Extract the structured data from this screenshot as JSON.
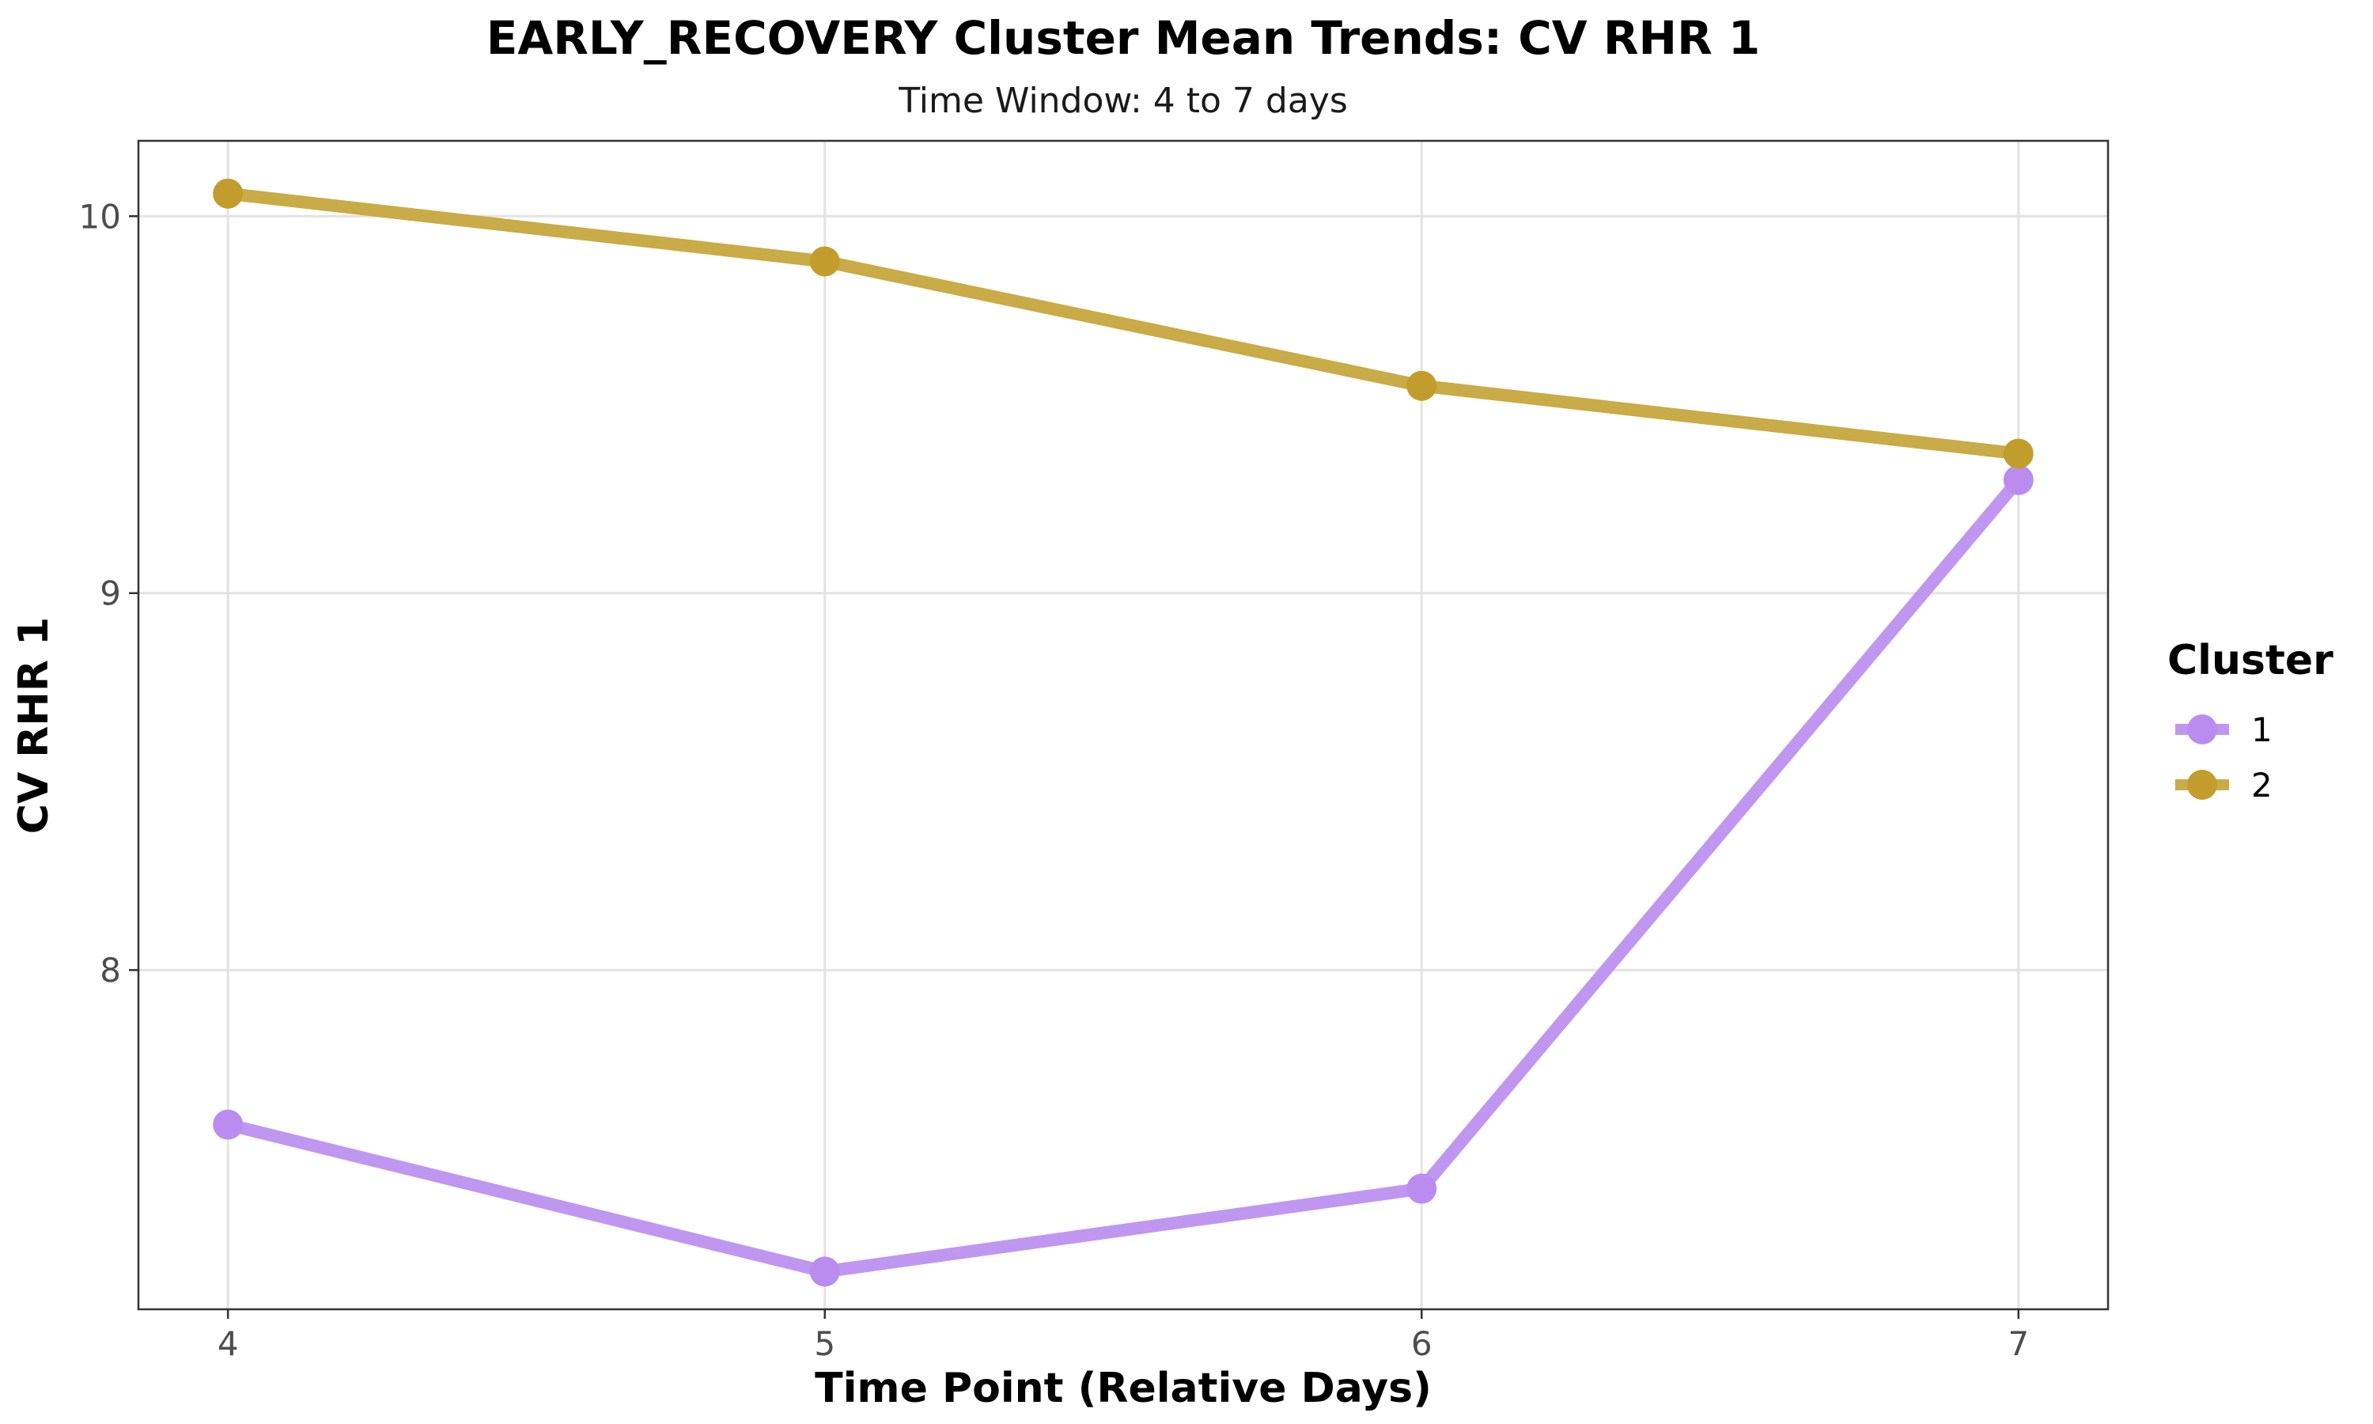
{
  "chart_data": {
    "type": "line",
    "title": "EARLY_RECOVERY Cluster Mean Trends: CV RHR 1",
    "subtitle": "Time Window: 4 to 7 days",
    "xlabel": "Time Point (Relative Days)",
    "ylabel": "CV RHR 1",
    "x": [
      4,
      5,
      6,
      7
    ],
    "x_ticks": [
      4,
      5,
      6,
      7
    ],
    "y_ticks": [
      8,
      9,
      10
    ],
    "xlim": [
      3.85,
      7.15
    ],
    "ylim": [
      7.1,
      10.2
    ],
    "grid": true,
    "legend": {
      "title": "Cluster",
      "position": "right"
    },
    "series": [
      {
        "name": "1",
        "color": "#bf97f0",
        "point_color": "#bb8cf0",
        "values": [
          7.59,
          7.2,
          7.42,
          9.3
        ]
      },
      {
        "name": "2",
        "color": "#c9ab47",
        "point_color": "#c29d2d",
        "values": [
          10.06,
          9.88,
          9.55,
          9.37
        ]
      }
    ]
  }
}
